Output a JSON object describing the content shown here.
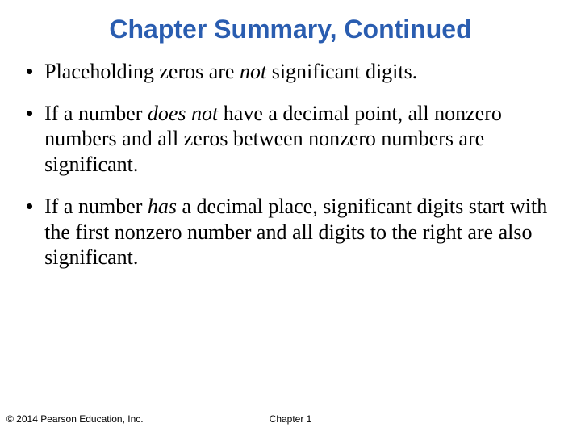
{
  "title": {
    "text": "Chapter Summary, Continued",
    "color": "#2a5db0",
    "fontsize": 32
  },
  "bullets": [
    {
      "segments": [
        {
          "t": "Placeholding zeros are ",
          "i": false
        },
        {
          "t": "not",
          "i": true
        },
        {
          "t": " significant digits.",
          "i": false
        }
      ]
    },
    {
      "segments": [
        {
          "t": "If a number ",
          "i": false
        },
        {
          "t": "does not",
          "i": true
        },
        {
          "t": " have a decimal point, all nonzero numbers and all zeros between nonzero numbers are significant.",
          "i": false
        }
      ]
    },
    {
      "segments": [
        {
          "t": "If a number ",
          "i": false
        },
        {
          "t": "has",
          "i": true
        },
        {
          "t": " a decimal place, significant digits start with the first nonzero number and all digits to the right are also significant.",
          "i": false
        }
      ]
    }
  ],
  "footer": {
    "copyright": "© 2014 Pearson Education, Inc.",
    "chapter": "Chapter 1"
  },
  "colors": {
    "background": "#ffffff",
    "body_text": "#000000"
  }
}
